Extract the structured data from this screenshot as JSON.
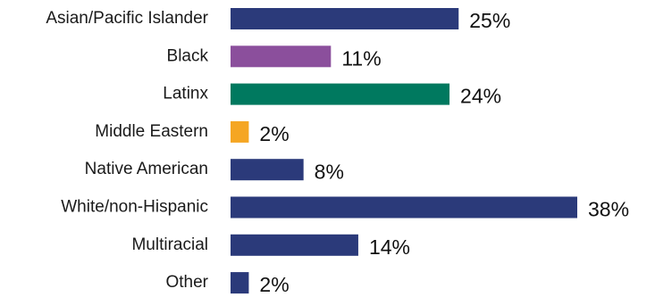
{
  "chart_data": {
    "type": "bar",
    "orientation": "horizontal",
    "categories": [
      "Asian/Pacific Islander",
      "Black",
      "Latinx",
      "Middle Eastern",
      "Native American",
      "White/non-Hispanic",
      "Multiracial",
      "Other"
    ],
    "values": [
      25,
      11,
      24,
      2,
      8,
      38,
      14,
      2
    ],
    "value_labels": [
      "25%",
      "11%",
      "24%",
      "2%",
      "8%",
      "38%",
      "14%",
      "2%"
    ],
    "colors": [
      "#2b3a7a",
      "#8b4f9c",
      "#00795f",
      "#f5a623",
      "#2b3a7a",
      "#2b3a7a",
      "#2b3a7a",
      "#2b3a7a"
    ],
    "xlim": [
      0,
      38
    ],
    "grid": false,
    "title": "",
    "xlabel": "",
    "ylabel": ""
  }
}
